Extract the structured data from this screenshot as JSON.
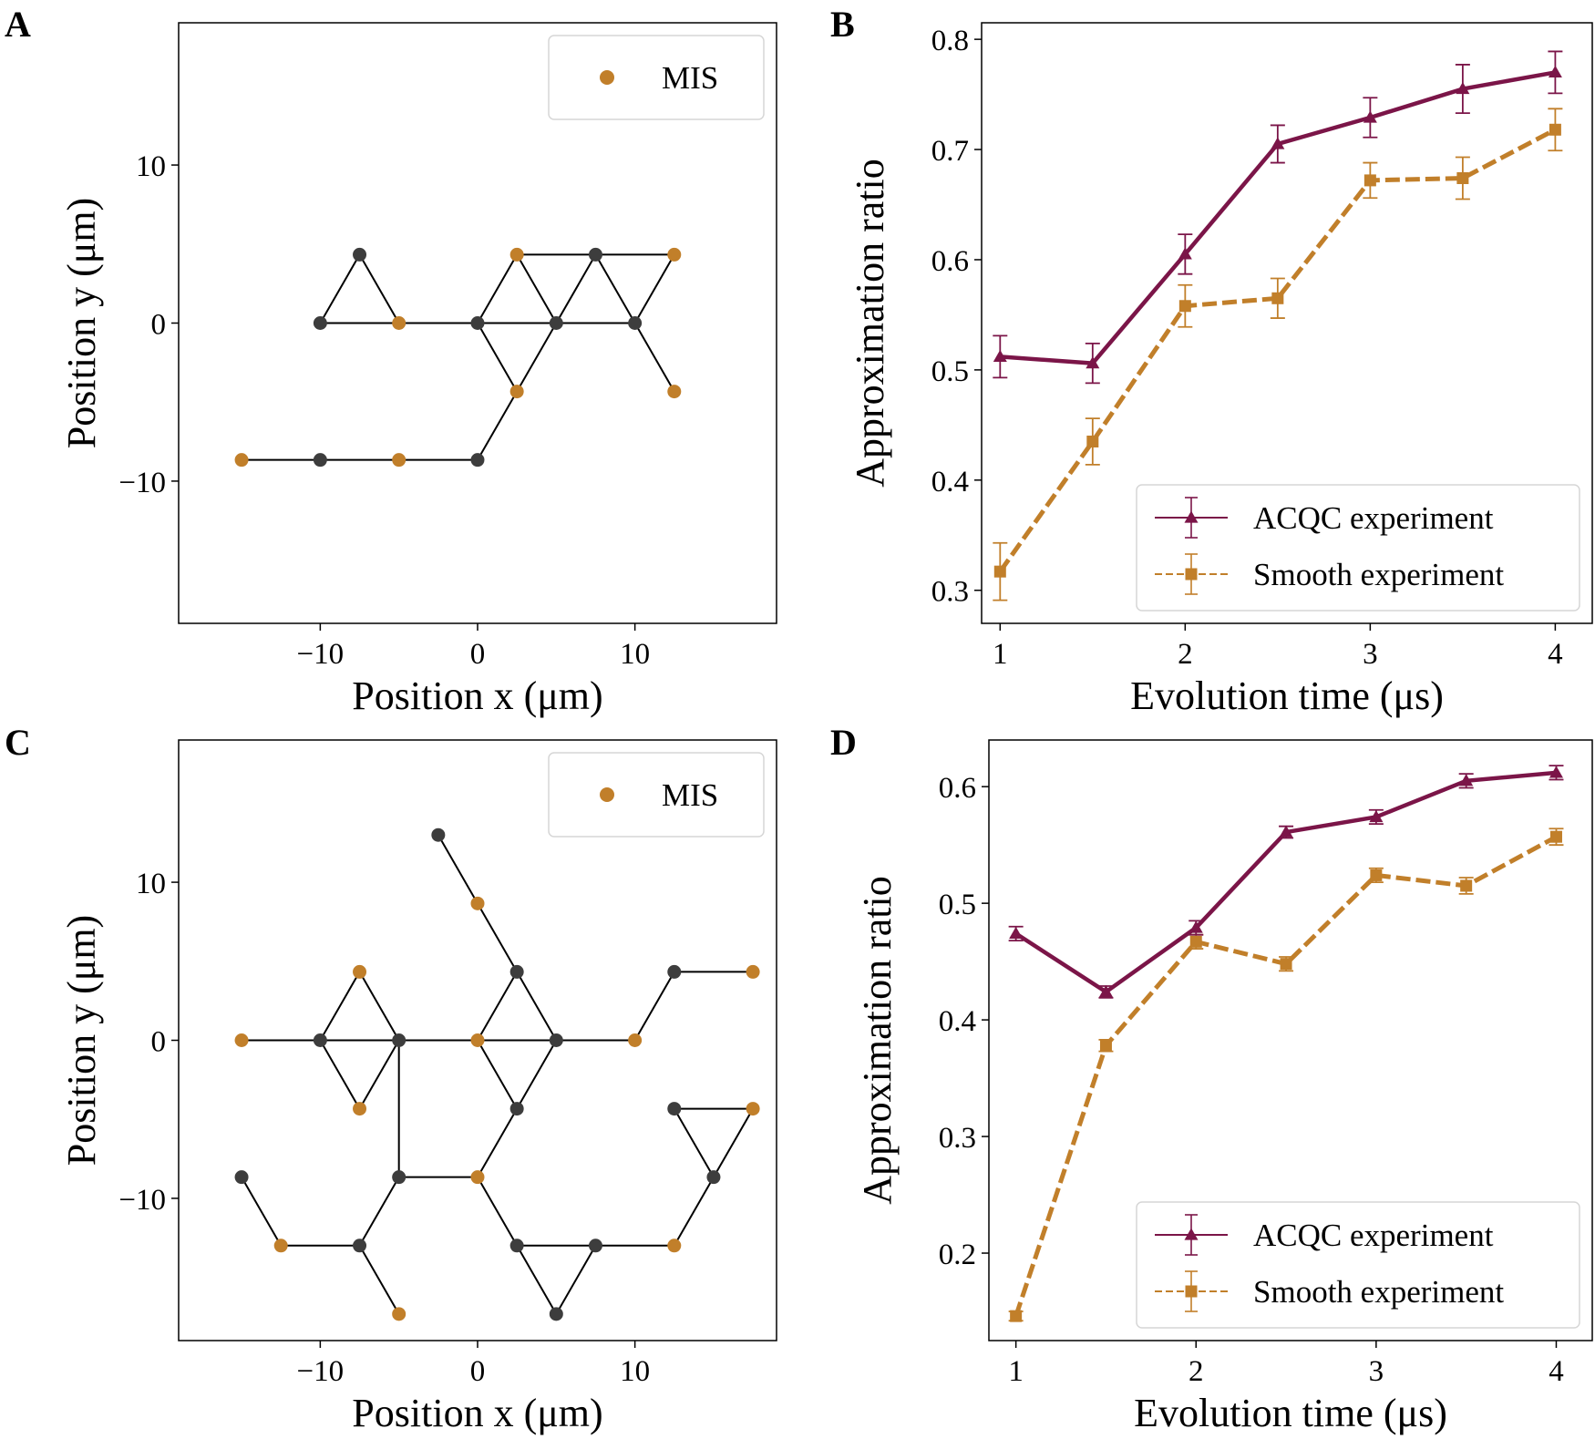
{
  "chart_data": [
    {
      "panel": "A",
      "type": "scatter",
      "xlabel": "Position x (μm)",
      "ylabel": "Position y (μm)",
      "xlim": [
        -19,
        19
      ],
      "ylim": [
        -19,
        19
      ],
      "xticks": [
        -10,
        0,
        10
      ],
      "yticks": [
        -10,
        0,
        10
      ],
      "xtick_labels": [
        "−10",
        "0",
        "10"
      ],
      "ytick_labels": [
        "−10",
        "0",
        "10"
      ],
      "legend": {
        "label": "MIS",
        "placement": "top-right"
      },
      "colors": {
        "mis": "#c17f2a",
        "other": "#3d3d3d",
        "edge": "#000000"
      },
      "nodes": [
        {
          "x": -15,
          "y": -8.66,
          "mis": true
        },
        {
          "x": -10,
          "y": -8.66,
          "mis": false
        },
        {
          "x": -5,
          "y": -8.66,
          "mis": true
        },
        {
          "x": 0,
          "y": -8.66,
          "mis": false
        },
        {
          "x": -10,
          "y": 0,
          "mis": false
        },
        {
          "x": -7.5,
          "y": 4.33,
          "mis": false
        },
        {
          "x": -5,
          "y": 0,
          "mis": true
        },
        {
          "x": 0,
          "y": 0,
          "mis": false
        },
        {
          "x": 2.5,
          "y": 4.33,
          "mis": true
        },
        {
          "x": 2.5,
          "y": -4.33,
          "mis": true
        },
        {
          "x": 5,
          "y": 0,
          "mis": false
        },
        {
          "x": 7.5,
          "y": 4.33,
          "mis": false
        },
        {
          "x": 10,
          "y": 0,
          "mis": false
        },
        {
          "x": 12.5,
          "y": 4.33,
          "mis": true
        },
        {
          "x": 12.5,
          "y": -4.33,
          "mis": true
        }
      ],
      "edges": [
        [
          0,
          1
        ],
        [
          1,
          2
        ],
        [
          2,
          3
        ],
        [
          3,
          10
        ],
        [
          4,
          5
        ],
        [
          5,
          6
        ],
        [
          4,
          6
        ],
        [
          6,
          7
        ],
        [
          7,
          10
        ],
        [
          10,
          12
        ],
        [
          7,
          8
        ],
        [
          8,
          10
        ],
        [
          10,
          11
        ],
        [
          11,
          12
        ],
        [
          8,
          11
        ],
        [
          11,
          13
        ],
        [
          12,
          13
        ],
        [
          7,
          9
        ],
        [
          12,
          14
        ]
      ]
    },
    {
      "panel": "B",
      "type": "line",
      "xlabel": "Evolution time (μs)",
      "ylabel": "Approximation ratio",
      "xlim": [
        0.9,
        4.2
      ],
      "ylim": [
        0.27,
        0.815
      ],
      "xticks": [
        1,
        2,
        3,
        4
      ],
      "yticks": [
        0.3,
        0.4,
        0.5,
        0.6,
        0.7,
        0.8
      ],
      "xtick_labels": [
        "1",
        "2",
        "3",
        "4"
      ],
      "ytick_labels": [
        "0.3",
        "0.4",
        "0.5",
        "0.6",
        "0.7",
        "0.8"
      ],
      "legend_placement": "lower-right",
      "x": [
        1,
        1.5,
        2,
        2.5,
        3,
        3.5,
        4
      ],
      "series": [
        {
          "name": "ACQC experiment",
          "color": "#7b1548",
          "marker": "triangle",
          "dashed": false,
          "values": [
            0.512,
            0.506,
            0.605,
            0.705,
            0.729,
            0.755,
            0.77
          ],
          "errors": [
            0.019,
            0.018,
            0.018,
            0.017,
            0.018,
            0.022,
            0.019
          ]
        },
        {
          "name": "Smooth experiment",
          "color": "#c17f2a",
          "marker": "square",
          "dashed": true,
          "values": [
            0.317,
            0.435,
            0.558,
            0.565,
            0.672,
            0.674,
            0.718
          ],
          "errors": [
            0.026,
            0.021,
            0.019,
            0.018,
            0.016,
            0.019,
            0.019
          ]
        }
      ]
    },
    {
      "panel": "C",
      "type": "scatter",
      "xlabel": "Position x (μm)",
      "ylabel": "Position y (μm)",
      "xlim": [
        -19,
        19
      ],
      "ylim": [
        -19,
        19
      ],
      "xticks": [
        -10,
        0,
        10
      ],
      "yticks": [
        -10,
        0,
        10
      ],
      "xtick_labels": [
        "−10",
        "0",
        "10"
      ],
      "ytick_labels": [
        "−10",
        "0",
        "10"
      ],
      "legend": {
        "label": "MIS",
        "placement": "top-right"
      },
      "colors": {
        "mis": "#c17f2a",
        "other": "#3d3d3d",
        "edge": "#000000"
      },
      "nodes": [
        {
          "x": -2.5,
          "y": 12.99,
          "mis": false
        },
        {
          "x": 0,
          "y": 8.66,
          "mis": true
        },
        {
          "x": 2.5,
          "y": 4.33,
          "mis": false
        },
        {
          "x": -7.5,
          "y": 4.33,
          "mis": true
        },
        {
          "x": -15,
          "y": 0,
          "mis": true
        },
        {
          "x": -10,
          "y": 0,
          "mis": false
        },
        {
          "x": -5,
          "y": 0,
          "mis": false
        },
        {
          "x": 0,
          "y": 0,
          "mis": true
        },
        {
          "x": 5,
          "y": 0,
          "mis": false
        },
        {
          "x": 10,
          "y": 0,
          "mis": true
        },
        {
          "x": 12.5,
          "y": 4.33,
          "mis": false
        },
        {
          "x": 17.5,
          "y": 4.33,
          "mis": true
        },
        {
          "x": -7.5,
          "y": -4.33,
          "mis": true
        },
        {
          "x": 2.5,
          "y": -4.33,
          "mis": false
        },
        {
          "x": 12.5,
          "y": -4.33,
          "mis": false
        },
        {
          "x": 17.5,
          "y": -4.33,
          "mis": true
        },
        {
          "x": -15,
          "y": -8.66,
          "mis": false
        },
        {
          "x": -5,
          "y": -8.66,
          "mis": false
        },
        {
          "x": 0,
          "y": -8.66,
          "mis": true
        },
        {
          "x": 15,
          "y": -8.66,
          "mis": false
        },
        {
          "x": -12.5,
          "y": -12.99,
          "mis": true
        },
        {
          "x": -7.5,
          "y": -12.99,
          "mis": false
        },
        {
          "x": 2.5,
          "y": -12.99,
          "mis": false
        },
        {
          "x": 7.5,
          "y": -12.99,
          "mis": false
        },
        {
          "x": 12.5,
          "y": -12.99,
          "mis": true
        },
        {
          "x": -5,
          "y": -17.32,
          "mis": true
        },
        {
          "x": 5,
          "y": -17.32,
          "mis": false
        }
      ],
      "edges": [
        [
          0,
          1
        ],
        [
          1,
          2
        ],
        [
          2,
          7
        ],
        [
          2,
          8
        ],
        [
          4,
          5
        ],
        [
          5,
          6
        ],
        [
          6,
          7
        ],
        [
          7,
          8
        ],
        [
          8,
          9
        ],
        [
          5,
          3
        ],
        [
          3,
          6
        ],
        [
          5,
          12
        ],
        [
          12,
          6
        ],
        [
          6,
          17
        ],
        [
          7,
          13
        ],
        [
          13,
          8
        ],
        [
          13,
          18
        ],
        [
          17,
          18
        ],
        [
          9,
          10
        ],
        [
          10,
          11
        ],
        [
          14,
          15
        ],
        [
          14,
          19
        ],
        [
          15,
          19
        ],
        [
          16,
          20
        ],
        [
          20,
          21
        ],
        [
          21,
          17
        ],
        [
          21,
          25
        ],
        [
          18,
          22
        ],
        [
          22,
          23
        ],
        [
          22,
          26
        ],
        [
          23,
          26
        ],
        [
          23,
          24
        ],
        [
          24,
          19
        ]
      ]
    },
    {
      "panel": "D",
      "type": "line",
      "xlabel": "Evolution time (μs)",
      "ylabel": "Approximation ratio",
      "xlim": [
        0.85,
        4.2
      ],
      "ylim": [
        0.125,
        0.64
      ],
      "xticks": [
        1,
        2,
        3,
        4
      ],
      "yticks": [
        0.2,
        0.3,
        0.4,
        0.5,
        0.6
      ],
      "xtick_labels": [
        "1",
        "2",
        "3",
        "4"
      ],
      "ytick_labels": [
        "0.2",
        "0.3",
        "0.4",
        "0.5",
        "0.6"
      ],
      "legend_placement": "lower-right",
      "x": [
        1,
        1.5,
        2,
        2.5,
        3,
        3.5,
        4
      ],
      "series": [
        {
          "name": "ACQC experiment",
          "color": "#7b1548",
          "marker": "triangle",
          "dashed": false,
          "values": [
            0.474,
            0.424,
            0.479,
            0.561,
            0.574,
            0.605,
            0.612
          ],
          "errors": [
            0.006,
            0.005,
            0.006,
            0.005,
            0.006,
            0.006,
            0.006
          ]
        },
        {
          "name": "Smooth experiment",
          "color": "#c17f2a",
          "marker": "square",
          "dashed": true,
          "values": [
            0.146,
            0.378,
            0.467,
            0.448,
            0.524,
            0.515,
            0.557
          ],
          "errors": [
            0.004,
            0.005,
            0.006,
            0.006,
            0.006,
            0.007,
            0.007
          ]
        }
      ]
    }
  ]
}
